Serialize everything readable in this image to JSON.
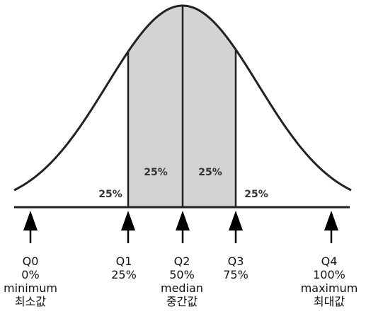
{
  "colors": {
    "shade": "#d3d3d3",
    "stroke": "#222222",
    "background": "#ffffff"
  },
  "regions": [
    {
      "id": "q0-q1",
      "label": "25%"
    },
    {
      "id": "q1-q2",
      "label": "25%"
    },
    {
      "id": "q2-q3",
      "label": "25%"
    },
    {
      "id": "q3-q4",
      "label": "25%"
    }
  ],
  "quartiles": [
    {
      "name": "Q0",
      "percent": "0%",
      "term": "minimum",
      "korean": "최소값"
    },
    {
      "name": "Q1",
      "percent": "25%",
      "term": "",
      "korean": ""
    },
    {
      "name": "Q2",
      "percent": "50%",
      "term": "median",
      "korean": "중간값"
    },
    {
      "name": "Q3",
      "percent": "75%",
      "term": "",
      "korean": ""
    },
    {
      "name": "Q4",
      "percent": "100%",
      "term": "maximum",
      "korean": "최대값"
    }
  ]
}
